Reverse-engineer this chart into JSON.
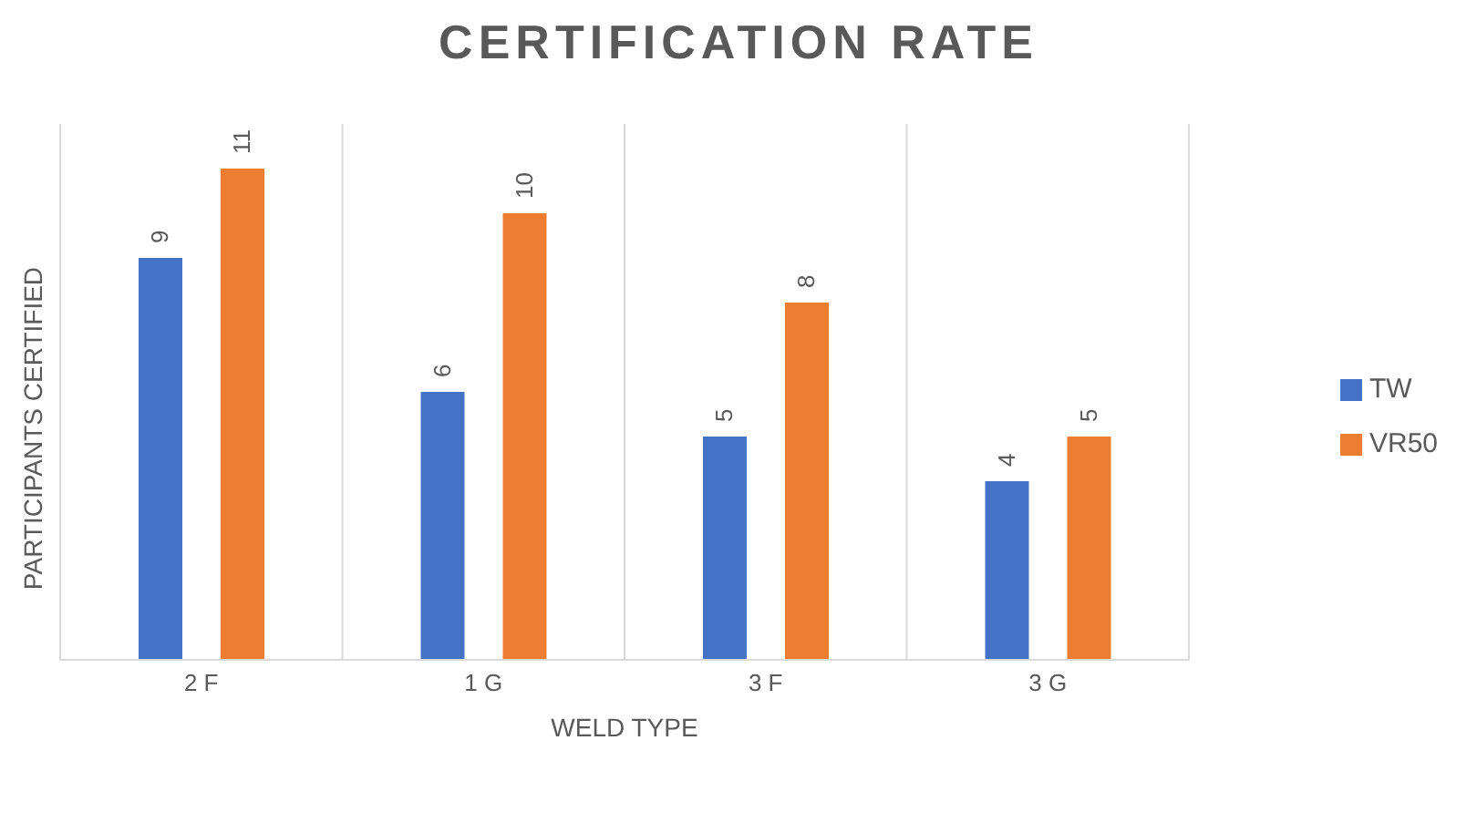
{
  "chart_data": {
    "type": "bar",
    "title": "CERTIFICATION RATE",
    "xlabel": "WELD TYPE",
    "ylabel": "PARTICIPANTS CERTIFIED",
    "categories": [
      "2 F",
      "1 G",
      "3 F",
      "3 G"
    ],
    "series": [
      {
        "name": "TW",
        "color": "#4472c4",
        "values": [
          9,
          6,
          5,
          4
        ]
      },
      {
        "name": "VR50",
        "color": "#ed7d31",
        "values": [
          11,
          10,
          8,
          5
        ]
      }
    ],
    "data_labels": true,
    "grid": "x",
    "legend": "right"
  }
}
